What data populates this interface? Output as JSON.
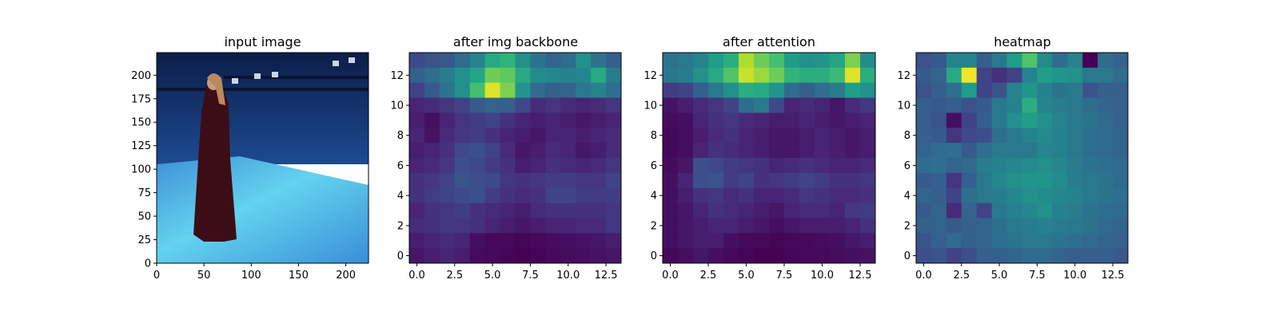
{
  "colormap": "viridis",
  "chart_data": [
    {
      "type": "image",
      "title": "input image",
      "image_description": "person in a long dark red dress standing in a blue motion-capture studio with lights on an overhead rig",
      "xlim": [
        0,
        224
      ],
      "ylim": [
        224,
        0
      ],
      "xticks": [
        0,
        50,
        100,
        150,
        200
      ],
      "yticks": [
        0,
        25,
        50,
        75,
        100,
        125,
        150,
        175,
        200
      ]
    },
    {
      "type": "heatmap",
      "title": "after img backbone",
      "xlim": [
        -0.5,
        13.5
      ],
      "ylim": [
        13.5,
        -0.5
      ],
      "xticks": [
        "0.0",
        "2.5",
        "5.0",
        "7.5",
        "10.0",
        "12.5"
      ],
      "yticks": [
        0,
        2,
        4,
        6,
        8,
        10,
        12
      ],
      "vmin": 0,
      "vmax": 1,
      "values": [
        [
          0.22,
          0.25,
          0.27,
          0.35,
          0.45,
          0.6,
          0.65,
          0.5,
          0.38,
          0.32,
          0.35,
          0.5,
          0.38,
          0.3
        ],
        [
          0.3,
          0.35,
          0.42,
          0.5,
          0.58,
          0.78,
          0.75,
          0.6,
          0.48,
          0.46,
          0.44,
          0.46,
          0.6,
          0.42
        ],
        [
          0.2,
          0.28,
          0.38,
          0.5,
          0.7,
          0.95,
          0.8,
          0.52,
          0.35,
          0.3,
          0.32,
          0.4,
          0.45,
          0.36
        ],
        [
          0.1,
          0.12,
          0.15,
          0.2,
          0.28,
          0.32,
          0.3,
          0.22,
          0.12,
          0.15,
          0.12,
          0.1,
          0.12,
          0.15
        ],
        [
          0.08,
          0.04,
          0.1,
          0.15,
          0.18,
          0.2,
          0.14,
          0.1,
          0.08,
          0.1,
          0.08,
          0.06,
          0.08,
          0.1
        ],
        [
          0.1,
          0.05,
          0.12,
          0.16,
          0.18,
          0.14,
          0.1,
          0.08,
          0.06,
          0.1,
          0.1,
          0.08,
          0.1,
          0.12
        ],
        [
          0.08,
          0.1,
          0.14,
          0.22,
          0.24,
          0.2,
          0.12,
          0.06,
          0.08,
          0.12,
          0.1,
          0.06,
          0.08,
          0.12
        ],
        [
          0.1,
          0.12,
          0.16,
          0.24,
          0.22,
          0.18,
          0.14,
          0.08,
          0.1,
          0.14,
          0.12,
          0.1,
          0.12,
          0.16
        ],
        [
          0.14,
          0.16,
          0.2,
          0.26,
          0.24,
          0.22,
          0.16,
          0.14,
          0.16,
          0.18,
          0.18,
          0.16,
          0.16,
          0.2
        ],
        [
          0.14,
          0.18,
          0.2,
          0.22,
          0.24,
          0.18,
          0.14,
          0.12,
          0.14,
          0.2,
          0.2,
          0.18,
          0.18,
          0.18
        ],
        [
          0.1,
          0.14,
          0.16,
          0.18,
          0.14,
          0.12,
          0.1,
          0.08,
          0.12,
          0.14,
          0.14,
          0.14,
          0.14,
          0.16
        ],
        [
          0.12,
          0.14,
          0.16,
          0.16,
          0.14,
          0.1,
          0.08,
          0.06,
          0.08,
          0.1,
          0.1,
          0.12,
          0.12,
          0.16
        ],
        [
          0.08,
          0.1,
          0.12,
          0.1,
          0.04,
          0.02,
          0.02,
          0.01,
          0.02,
          0.03,
          0.04,
          0.05,
          0.06,
          0.08
        ],
        [
          0.06,
          0.08,
          0.1,
          0.08,
          0.03,
          0.02,
          0.01,
          0.0,
          0.01,
          0.02,
          0.03,
          0.04,
          0.05,
          0.06
        ]
      ]
    },
    {
      "type": "heatmap",
      "title": "after attention",
      "xlim": [
        -0.5,
        13.5
      ],
      "ylim": [
        13.5,
        -0.5
      ],
      "xticks": [
        "0.0",
        "2.5",
        "5.0",
        "7.5",
        "10.0",
        "12.5"
      ],
      "yticks": [
        0,
        2,
        4,
        6,
        8,
        10,
        12
      ],
      "vmin": 0,
      "vmax": 1,
      "values": [
        [
          0.38,
          0.4,
          0.45,
          0.55,
          0.62,
          0.88,
          0.78,
          0.7,
          0.55,
          0.5,
          0.52,
          0.58,
          0.8,
          0.48
        ],
        [
          0.4,
          0.42,
          0.5,
          0.6,
          0.72,
          0.92,
          0.85,
          0.78,
          0.65,
          0.62,
          0.62,
          0.68,
          0.95,
          0.62
        ],
        [
          0.18,
          0.2,
          0.3,
          0.4,
          0.5,
          0.62,
          0.6,
          0.52,
          0.35,
          0.3,
          0.36,
          0.42,
          0.56,
          0.5
        ],
        [
          0.05,
          0.08,
          0.12,
          0.15,
          0.2,
          0.35,
          0.4,
          0.22,
          0.1,
          0.12,
          0.1,
          0.06,
          0.12,
          0.16
        ],
        [
          0.03,
          0.04,
          0.1,
          0.14,
          0.16,
          0.12,
          0.1,
          0.08,
          0.08,
          0.1,
          0.08,
          0.06,
          0.08,
          0.1
        ],
        [
          0.02,
          0.04,
          0.08,
          0.12,
          0.14,
          0.1,
          0.08,
          0.06,
          0.06,
          0.08,
          0.1,
          0.08,
          0.06,
          0.08
        ],
        [
          0.02,
          0.04,
          0.1,
          0.14,
          0.12,
          0.1,
          0.08,
          0.06,
          0.06,
          0.08,
          0.1,
          0.08,
          0.06,
          0.08
        ],
        [
          0.03,
          0.06,
          0.24,
          0.22,
          0.18,
          0.16,
          0.14,
          0.1,
          0.12,
          0.14,
          0.12,
          0.1,
          0.1,
          0.12
        ],
        [
          0.04,
          0.1,
          0.24,
          0.26,
          0.18,
          0.2,
          0.14,
          0.16,
          0.18,
          0.2,
          0.18,
          0.14,
          0.14,
          0.16
        ],
        [
          0.04,
          0.08,
          0.14,
          0.16,
          0.12,
          0.14,
          0.1,
          0.1,
          0.12,
          0.16,
          0.14,
          0.12,
          0.12,
          0.14
        ],
        [
          0.04,
          0.06,
          0.1,
          0.14,
          0.12,
          0.1,
          0.08,
          0.06,
          0.1,
          0.12,
          0.12,
          0.1,
          0.16,
          0.18
        ],
        [
          0.04,
          0.06,
          0.08,
          0.1,
          0.1,
          0.08,
          0.06,
          0.04,
          0.06,
          0.08,
          0.08,
          0.08,
          0.1,
          0.14
        ],
        [
          0.04,
          0.06,
          0.08,
          0.08,
          0.04,
          0.02,
          0.02,
          0.01,
          0.02,
          0.02,
          0.03,
          0.04,
          0.06,
          0.08
        ],
        [
          0.02,
          0.04,
          0.06,
          0.04,
          0.02,
          0.01,
          0.0,
          0.0,
          0.01,
          0.02,
          0.02,
          0.03,
          0.04,
          0.05
        ]
      ]
    },
    {
      "type": "heatmap",
      "title": "heatmap",
      "xlim": [
        -0.5,
        13.5
      ],
      "ylim": [
        13.5,
        -0.5
      ],
      "xticks": [
        "0.0",
        "2.5",
        "5.0",
        "7.5",
        "10.0",
        "12.5"
      ],
      "yticks": [
        0,
        2,
        4,
        6,
        8,
        10,
        12
      ],
      "vmin": 0,
      "vmax": 1,
      "values": [
        [
          0.25,
          0.28,
          0.45,
          0.45,
          0.3,
          0.4,
          0.55,
          0.72,
          0.48,
          0.35,
          0.45,
          0.0,
          0.35,
          0.32
        ],
        [
          0.28,
          0.32,
          0.6,
          0.98,
          0.2,
          0.14,
          0.2,
          0.45,
          0.56,
          0.52,
          0.5,
          0.4,
          0.4,
          0.35
        ],
        [
          0.25,
          0.3,
          0.36,
          0.55,
          0.2,
          0.26,
          0.45,
          0.52,
          0.44,
          0.38,
          0.4,
          0.26,
          0.3,
          0.3
        ],
        [
          0.3,
          0.28,
          0.3,
          0.25,
          0.28,
          0.4,
          0.44,
          0.62,
          0.45,
          0.42,
          0.4,
          0.35,
          0.32,
          0.3
        ],
        [
          0.3,
          0.25,
          0.04,
          0.2,
          0.3,
          0.4,
          0.5,
          0.56,
          0.5,
          0.45,
          0.4,
          0.38,
          0.34,
          0.3
        ],
        [
          0.3,
          0.28,
          0.15,
          0.22,
          0.24,
          0.36,
          0.4,
          0.45,
          0.48,
          0.44,
          0.4,
          0.36,
          0.34,
          0.32
        ],
        [
          0.32,
          0.35,
          0.36,
          0.28,
          0.36,
          0.42,
          0.4,
          0.4,
          0.46,
          0.44,
          0.4,
          0.36,
          0.34,
          0.32
        ],
        [
          0.35,
          0.36,
          0.32,
          0.34,
          0.42,
          0.44,
          0.46,
          0.48,
          0.5,
          0.46,
          0.42,
          0.38,
          0.36,
          0.34
        ],
        [
          0.28,
          0.3,
          0.15,
          0.3,
          0.4,
          0.46,
          0.5,
          0.52,
          0.52,
          0.48,
          0.42,
          0.4,
          0.38,
          0.34
        ],
        [
          0.32,
          0.3,
          0.2,
          0.36,
          0.4,
          0.42,
          0.46,
          0.5,
          0.48,
          0.46,
          0.44,
          0.4,
          0.38,
          0.36
        ],
        [
          0.28,
          0.32,
          0.12,
          0.32,
          0.2,
          0.4,
          0.44,
          0.46,
          0.5,
          0.44,
          0.42,
          0.38,
          0.36,
          0.34
        ],
        [
          0.3,
          0.32,
          0.28,
          0.3,
          0.32,
          0.36,
          0.4,
          0.42,
          0.44,
          0.42,
          0.4,
          0.38,
          0.34,
          0.32
        ],
        [
          0.26,
          0.3,
          0.34,
          0.3,
          0.32,
          0.36,
          0.38,
          0.4,
          0.4,
          0.38,
          0.36,
          0.34,
          0.32,
          0.3
        ],
        [
          0.24,
          0.26,
          0.2,
          0.24,
          0.3,
          0.3,
          0.32,
          0.34,
          0.34,
          0.32,
          0.3,
          0.3,
          0.3,
          0.28
        ]
      ]
    }
  ]
}
